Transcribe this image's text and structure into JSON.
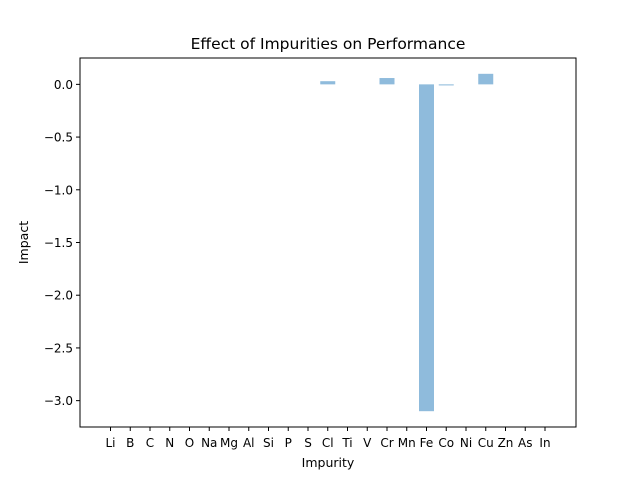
{
  "chart_data": {
    "type": "bar",
    "title": "Effect of Impurities on Performance",
    "xlabel": "Impurity",
    "ylabel": "Impact",
    "categories": [
      "Li",
      "B",
      "C",
      "N",
      "O",
      "Na",
      "Mg",
      "Al",
      "Si",
      "P",
      "S",
      "Cl",
      "Ti",
      "V",
      "Cr",
      "Mn",
      "Fe",
      "Co",
      "Ni",
      "Cu",
      "Zn",
      "As",
      "In"
    ],
    "values": [
      0,
      0,
      0,
      0,
      0,
      0,
      0,
      0,
      0,
      0,
      0,
      0.03,
      0,
      0,
      0.06,
      0,
      -3.1,
      -0.01,
      0,
      0.1,
      0,
      0,
      0
    ],
    "ylim": [
      -3.25,
      0.25
    ],
    "yticks": [
      0.0,
      -0.5,
      -1.0,
      -1.5,
      -2.0,
      -2.5,
      -3.0
    ],
    "ytick_labels": [
      "0.0",
      "−0.5",
      "−1.0",
      "−1.5",
      "−2.0",
      "−2.5",
      "−3.0"
    ],
    "grid": false,
    "legend": "none",
    "bar_color": "#8fbbdc",
    "axis_color": "#000000"
  }
}
